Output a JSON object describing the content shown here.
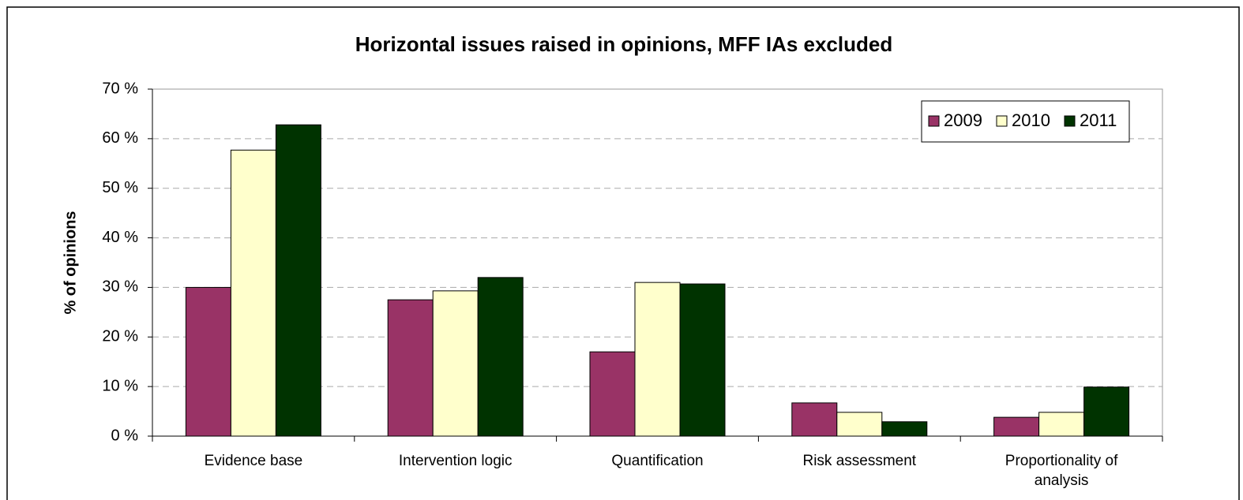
{
  "chart_data": {
    "type": "bar",
    "title": "Horizontal issues raised in opinions, MFF IAs excluded",
    "y_label": "% of opinions",
    "categories": [
      "Evidence base",
      "Intervention logic",
      "Quantification",
      "Risk assessment",
      "Proportionality of analysis"
    ],
    "series": [
      {
        "name": "2009",
        "color": "#993366",
        "values": [
          30,
          27.5,
          17,
          6.7,
          3.8
        ]
      },
      {
        "name": "2010",
        "color": "#FFFFCC",
        "values": [
          57.7,
          29.3,
          31,
          4.8,
          4.8
        ]
      },
      {
        "name": "2011",
        "color": "#003300",
        "values": [
          62.8,
          32,
          30.7,
          2.9,
          9.9
        ]
      }
    ],
    "ylim": [
      0,
      70
    ],
    "yticks": [
      {
        "value": 0,
        "label": "0 %"
      },
      {
        "value": 10,
        "label": "10 %"
      },
      {
        "value": 20,
        "label": "20 %"
      },
      {
        "value": 30,
        "label": "30 %"
      },
      {
        "value": 40,
        "label": "40 %"
      },
      {
        "value": 50,
        "label": "50 %"
      },
      {
        "value": 60,
        "label": "60 %"
      },
      {
        "value": 70,
        "label": "70 %"
      }
    ],
    "grid": true,
    "legend": "top-right"
  }
}
